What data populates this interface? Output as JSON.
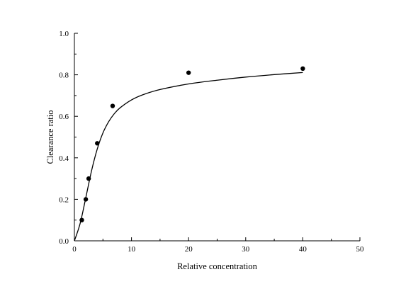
{
  "chart_data": {
    "type": "scatter",
    "xlabel": "Relative concentration",
    "ylabel": "Clearance ratio",
    "xlim": [
      0,
      50
    ],
    "ylim": [
      0,
      1.0
    ],
    "x_ticks": [
      0,
      10,
      20,
      30,
      40,
      50
    ],
    "y_ticks": [
      0.0,
      0.2,
      0.4,
      0.6,
      0.8,
      1.0
    ],
    "x_tick_labels": [
      "0",
      "10",
      "20",
      "30",
      "40",
      "50"
    ],
    "y_tick_labels": [
      "0.0",
      "0.2",
      "0.4",
      "0.6",
      "0.8",
      "1.0"
    ],
    "grid": false,
    "series": [
      {
        "kind": "points",
        "x": [
          1.3,
          2.0,
          2.5,
          4.0,
          6.7,
          20,
          40
        ],
        "y": [
          0.1,
          0.2,
          0.3,
          0.47,
          0.65,
          0.81,
          0.83
        ]
      },
      {
        "kind": "fitted_curve",
        "x": [
          0,
          1,
          2,
          3,
          4,
          5,
          6,
          7,
          8,
          10,
          12,
          15,
          20,
          25,
          30,
          35,
          40
        ],
        "y": [
          0,
          0.083,
          0.208,
          0.337,
          0.442,
          0.52,
          0.574,
          0.613,
          0.641,
          0.679,
          0.704,
          0.729,
          0.756,
          0.774,
          0.789,
          0.801,
          0.811
        ]
      }
    ]
  }
}
